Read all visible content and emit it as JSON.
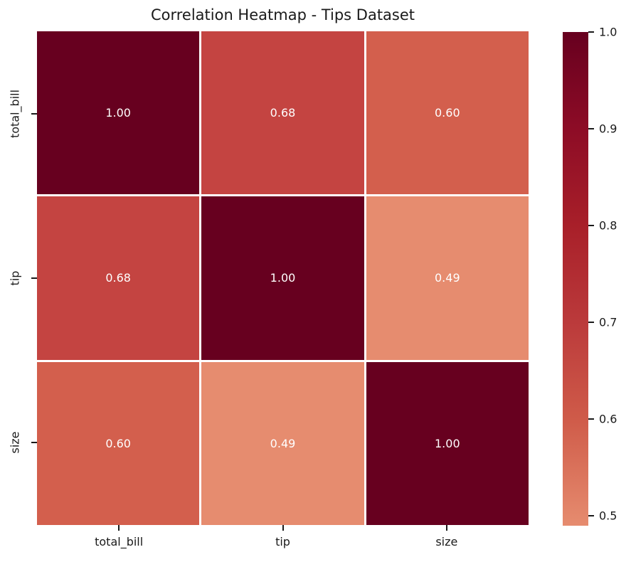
{
  "title": "Correlation Heatmap - Tips Dataset",
  "chart_data": {
    "type": "heatmap",
    "title": "Correlation Heatmap - Tips Dataset",
    "x_categories": [
      "total_bill",
      "tip",
      "size"
    ],
    "y_categories": [
      "total_bill",
      "tip",
      "size"
    ],
    "matrix": [
      [
        1.0,
        0.68,
        0.6
      ],
      [
        0.68,
        1.0,
        0.49
      ],
      [
        0.6,
        0.49,
        1.0
      ]
    ],
    "cell_labels": [
      [
        "1.00",
        "0.68",
        "0.60"
      ],
      [
        "0.68",
        "1.00",
        "0.49"
      ],
      [
        "0.60",
        "0.49",
        "1.00"
      ]
    ],
    "cell_colors": [
      [
        "#67001f",
        "#c44441",
        "#d35f4d"
      ],
      [
        "#c44441",
        "#67001f",
        "#e68c6f"
      ],
      [
        "#d35f4d",
        "#e68c6f",
        "#67001f"
      ]
    ],
    "vmin": 0.49,
    "vmax": 1.0,
    "grid_line_color": "#ffffff",
    "annot_color": "#ffffff",
    "axis_text_color": "#1a1a1a",
    "legend_position": "right",
    "colorbar": {
      "tick_labels": [
        "1.0",
        "0.9",
        "0.8",
        "0.7",
        "0.6",
        "0.5"
      ],
      "tick_values": [
        1.0,
        0.9,
        0.8,
        0.7,
        0.6,
        0.5
      ],
      "gradient_top_to_bottom": [
        {
          "pos": 0.0,
          "color": "#67001f"
        },
        {
          "pos": 0.196,
          "color": "#8d0c26"
        },
        {
          "pos": 0.392,
          "color": "#a81f29"
        },
        {
          "pos": 0.588,
          "color": "#bb3a3b"
        },
        {
          "pos": 0.784,
          "color": "#cf5b49"
        },
        {
          "pos": 1.0,
          "color": "#e68c6f"
        }
      ]
    }
  }
}
